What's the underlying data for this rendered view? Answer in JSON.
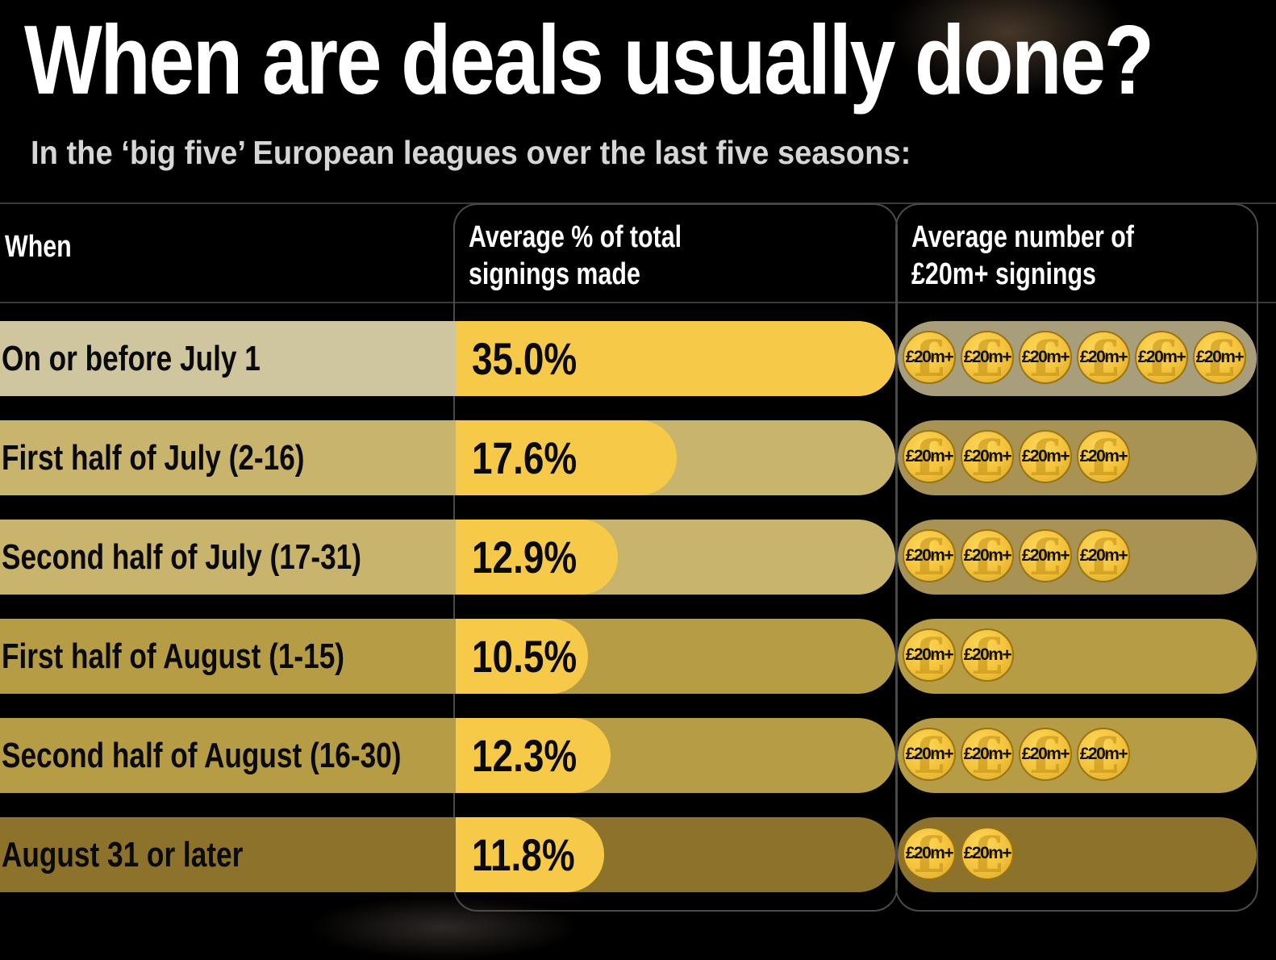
{
  "title": "When are deals usually done?",
  "subtitle": "In the ‘big five’ European leagues over the last five seasons:",
  "headers": {
    "when": "When",
    "pct_line1": "Average % of total",
    "pct_line2": "signings made",
    "num_line1": "Average number of",
    "num_line2": "£20m+ signings"
  },
  "coin_label": "£20m+",
  "colors": {
    "accent": "#f6c949",
    "row_shades": [
      "#cfc6a0",
      "#c8b46c",
      "#c8b46c",
      "#b69c44",
      "#b69c44",
      "#8c722a"
    ],
    "coin_track_shades": [
      "#a89e7c",
      "#a89254",
      "#a89254",
      "#b69c44",
      "#b69c44",
      "#8c722a"
    ]
  },
  "chart_data": {
    "type": "table",
    "title": "When are deals usually done?",
    "subtitle": "In the ‘big five’ European leagues over the last five seasons:",
    "columns": [
      "When",
      "Average % of total signings made",
      "Average number of £20m+ signings"
    ],
    "categories": [
      "On or before July 1",
      "First half of July (2-16)",
      "Second half of July (17-31)",
      "First half of August (1-15)",
      "Second half of August (16-30)",
      "August 31 or later"
    ],
    "rows": [
      {
        "when": "On or before July 1",
        "pct": 35.0,
        "pct_label": "35.0%",
        "signings_20m": 6
      },
      {
        "when": "First half of July (2-16)",
        "pct": 17.6,
        "pct_label": "17.6%",
        "signings_20m": 4
      },
      {
        "when": "Second half of July (17-31)",
        "pct": 12.9,
        "pct_label": "12.9%",
        "signings_20m": 4
      },
      {
        "when": "First half of August (1-15)",
        "pct": 10.5,
        "pct_label": "10.5%",
        "signings_20m": 2
      },
      {
        "when": "Second half of August (16-30)",
        "pct": 12.3,
        "pct_label": "12.3%",
        "signings_20m": 4
      },
      {
        "when": "August 31 or later",
        "pct": 11.8,
        "pct_label": "11.8%",
        "signings_20m": 2
      }
    ],
    "pct_max": 35.0
  }
}
